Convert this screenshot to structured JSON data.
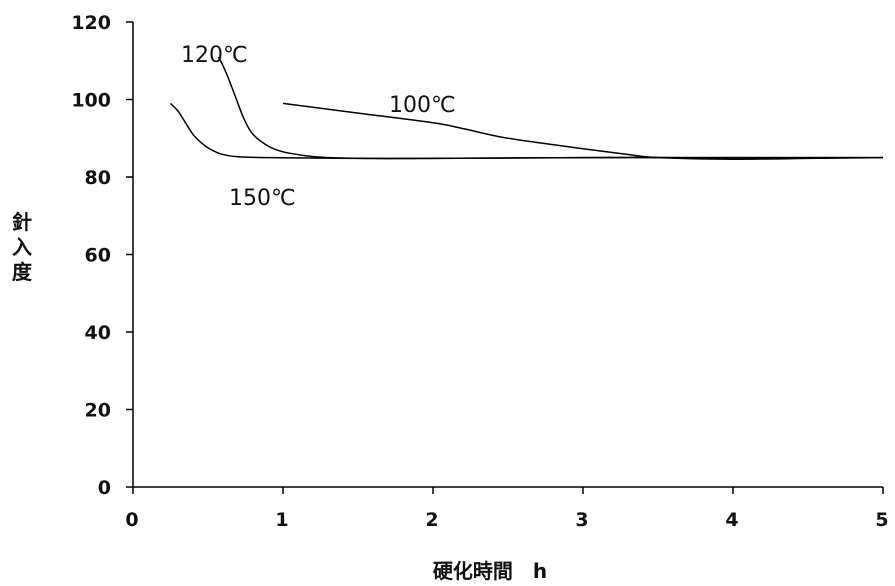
{
  "chart_data": {
    "type": "line",
    "title": "",
    "xlabel": "硬化時間　h",
    "ylabel_chars": [
      "針",
      "入",
      "度"
    ],
    "xlim": [
      0,
      5
    ],
    "ylim": [
      0,
      120
    ],
    "x_ticks": [
      0,
      1,
      2,
      3,
      4,
      5
    ],
    "y_ticks": [
      0,
      20,
      40,
      60,
      80,
      100,
      120
    ],
    "grid": false,
    "legend": "none",
    "series": [
      {
        "name": "120℃",
        "x": [
          0.57,
          0.62,
          0.68,
          0.74,
          0.8,
          0.9,
          1.0,
          1.15,
          1.3,
          1.6,
          2.0,
          3.0,
          4.0,
          5.0
        ],
        "y": [
          111,
          107,
          101,
          95,
          91,
          88,
          86.5,
          85.5,
          85,
          84.8,
          84.8,
          85,
          85,
          85
        ]
      },
      {
        "name": "150℃",
        "x": [
          0.25,
          0.3,
          0.35,
          0.4,
          0.45,
          0.5,
          0.55,
          0.6,
          0.7,
          0.9,
          1.5,
          2.0,
          3.0,
          4.0,
          5.0
        ],
        "y": [
          99,
          97,
          94,
          91,
          89,
          87.5,
          86.5,
          85.8,
          85.2,
          85,
          84.8,
          84.8,
          85,
          85,
          85
        ]
      },
      {
        "name": "100℃",
        "x": [
          1.0,
          1.5,
          2.0,
          2.2,
          2.5,
          3.0,
          3.3,
          3.5,
          4.0,
          4.5,
          5.0
        ],
        "y": [
          99,
          96.5,
          94,
          92.5,
          90,
          87.3,
          85.8,
          85,
          84.6,
          84.8,
          85
        ]
      }
    ],
    "annotations": [
      {
        "text": "120℃",
        "series": "120℃"
      },
      {
        "text": "100℃",
        "series": "100℃"
      },
      {
        "text": "150℃",
        "series": "150℃"
      }
    ]
  }
}
